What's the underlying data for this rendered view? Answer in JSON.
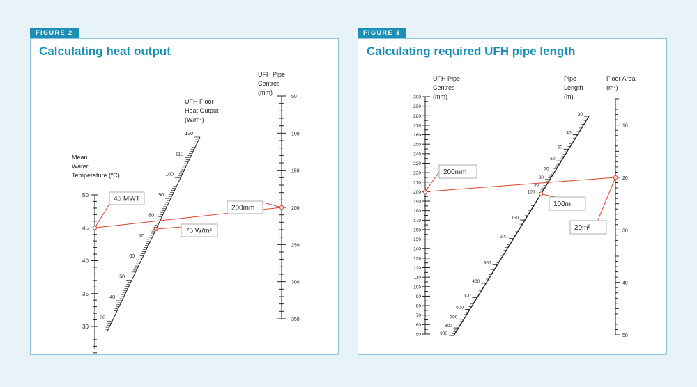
{
  "colors": {
    "accent": "#1a8fb8",
    "line": "#d9442b",
    "background": "#e8f3f8",
    "panel_border": "#8fc3d9",
    "text": "#222222"
  },
  "figure2": {
    "tag": "FIGURE 2",
    "title": "Calculating heat output",
    "axes": {
      "mwt": {
        "label": [
          "Mean",
          "Water",
          "Temperature (ºC)"
        ],
        "min": 30,
        "max": 50,
        "major_ticks": [
          "30",
          "35",
          "40",
          "45",
          "50"
        ]
      },
      "output": {
        "label": [
          "UFH Floor",
          "Heat Output",
          "(W/m²)"
        ],
        "min": 30,
        "max": 120,
        "major_ticks": [
          "30",
          "40",
          "50",
          "60",
          "70",
          "80",
          "90",
          "100",
          "110",
          "120"
        ]
      },
      "centres": {
        "label": [
          "UFH Pipe",
          "Centres",
          "(mm)"
        ],
        "min": 50,
        "max": 350,
        "major_ticks": [
          "50",
          "100",
          "150",
          "200",
          "250",
          "300",
          "350"
        ]
      }
    },
    "example": {
      "mwt": 45,
      "output": 75,
      "centres": 200
    },
    "callouts": {
      "mwt": "45 MWT",
      "output": "75 W/m²",
      "centres": "200mm"
    }
  },
  "figure3": {
    "tag": "FIGURE 3",
    "title": "Calculating required UFH pipe length",
    "axes": {
      "centres": {
        "label": [
          "UFH Pipe",
          "Centres",
          "(mm)"
        ],
        "min": 50,
        "max": 300,
        "major_ticks": [
          "50",
          "60",
          "70",
          "80",
          "90",
          "100",
          "110",
          "120",
          "130",
          "140",
          "150",
          "160",
          "170",
          "180",
          "190",
          "200",
          "210",
          "220",
          "230",
          "240",
          "250",
          "260",
          "270",
          "280",
          "290",
          "300"
        ]
      },
      "length": {
        "label": [
          "Pipe",
          "Length",
          "(m)"
        ],
        "ticks": [
          "30",
          "40",
          "50",
          "60",
          "70",
          "80",
          "90",
          "100",
          "150",
          "200",
          "300",
          "400",
          "500",
          "600",
          "700",
          "800",
          "900"
        ]
      },
      "area": {
        "label": [
          "Floor Area",
          "(m²)"
        ],
        "min": 5,
        "max": 50,
        "major_ticks": [
          "10",
          "20",
          "30",
          "40",
          "50"
        ]
      }
    },
    "example": {
      "centres": 200,
      "length": 100,
      "area": 20
    },
    "callouts": {
      "centres": "200mm",
      "length": "100m",
      "area": "20m²"
    }
  }
}
